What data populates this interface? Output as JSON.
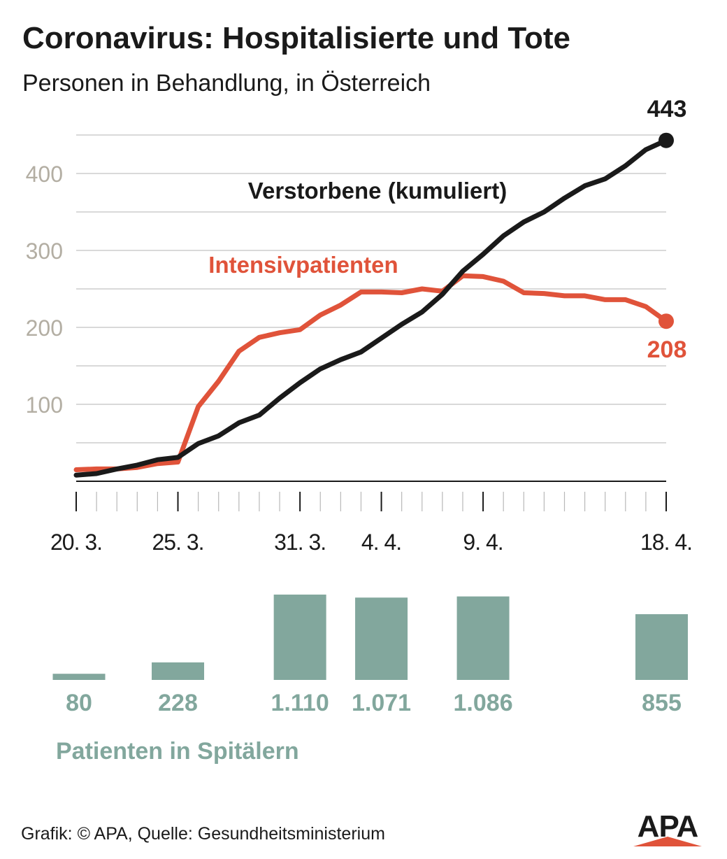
{
  "title": "Coronavirus: Hospitalisierte und Tote",
  "subtitle": "Personen in Behandlung, in Österreich",
  "footer": "Grafik: © APA, Quelle: Gesundheitsministerium",
  "logo_text": "APA",
  "colors": {
    "deaths": "#1a1a1a",
    "icu": "#e0533a",
    "hospital": "#82a79d",
    "grid": "#d9d9d9",
    "axis_tick_label": "#b3aea3"
  },
  "chart_data": [
    {
      "type": "line",
      "ylim": [
        0,
        460
      ],
      "yticks": [
        100,
        200,
        300,
        400
      ],
      "x_range": [
        "2020-03-20",
        "2020-04-18"
      ],
      "x_tick_labels": [
        {
          "date": "2020-03-20",
          "label": "20. 3."
        },
        {
          "date": "2020-03-25",
          "label": "25. 3."
        },
        {
          "date": "2020-03-31",
          "label": "31. 3."
        },
        {
          "date": "2020-04-04",
          "label": "4. 4."
        },
        {
          "date": "2020-04-09",
          "label": "9. 4."
        },
        {
          "date": "2020-04-18",
          "label": "18. 4."
        }
      ],
      "series": [
        {
          "name": "Verstorbene (kumuliert)",
          "color": "#1a1a1a",
          "end_label": "443",
          "x": [
            "2020-03-20",
            "2020-03-21",
            "2020-03-22",
            "2020-03-23",
            "2020-03-24",
            "2020-03-25",
            "2020-03-26",
            "2020-03-27",
            "2020-03-28",
            "2020-03-29",
            "2020-03-30",
            "2020-03-31",
            "2020-04-01",
            "2020-04-02",
            "2020-04-03",
            "2020-04-04",
            "2020-04-05",
            "2020-04-06",
            "2020-04-07",
            "2020-04-08",
            "2020-04-09",
            "2020-04-10",
            "2020-04-11",
            "2020-04-12",
            "2020-04-13",
            "2020-04-14",
            "2020-04-15",
            "2020-04-16",
            "2020-04-17",
            "2020-04-18"
          ],
          "y": [
            8,
            10,
            16,
            21,
            28,
            31,
            49,
            59,
            76,
            86,
            108,
            128,
            146,
            158,
            168,
            186,
            204,
            220,
            243,
            273,
            295,
            319,
            337,
            350,
            368,
            384,
            393,
            410,
            431,
            443
          ]
        },
        {
          "name": "Intensivpatienten",
          "color": "#e0533a",
          "end_label": "208",
          "x": [
            "2020-03-20",
            "2020-03-21",
            "2020-03-22",
            "2020-03-23",
            "2020-03-24",
            "2020-03-25",
            "2020-03-26",
            "2020-03-27",
            "2020-03-28",
            "2020-03-29",
            "2020-03-30",
            "2020-03-31",
            "2020-04-01",
            "2020-04-02",
            "2020-04-03",
            "2020-04-04",
            "2020-04-05",
            "2020-04-06",
            "2020-04-07",
            "2020-04-08",
            "2020-04-09",
            "2020-04-10",
            "2020-04-11",
            "2020-04-12",
            "2020-04-13",
            "2020-04-14",
            "2020-04-15",
            "2020-04-16",
            "2020-04-17",
            "2020-04-18"
          ],
          "y": [
            15,
            16,
            16,
            18,
            23,
            25,
            97,
            130,
            169,
            187,
            193,
            197,
            216,
            229,
            246,
            246,
            245,
            250,
            247,
            267,
            266,
            260,
            245,
            244,
            241,
            241,
            236,
            236,
            227,
            208
          ]
        }
      ]
    },
    {
      "type": "bar",
      "name": "Patienten in Spitälern",
      "color": "#82a79d",
      "categories": [
        "2020-03-20",
        "2020-03-25",
        "2020-03-31",
        "2020-04-04",
        "2020-04-09",
        "2020-04-18"
      ],
      "values": [
        80,
        228,
        1110,
        1071,
        1086,
        855
      ],
      "value_labels": [
        "80",
        "228",
        "1.110",
        "1.071",
        "1.086",
        "855"
      ],
      "ylim": [
        0,
        1110
      ]
    }
  ]
}
